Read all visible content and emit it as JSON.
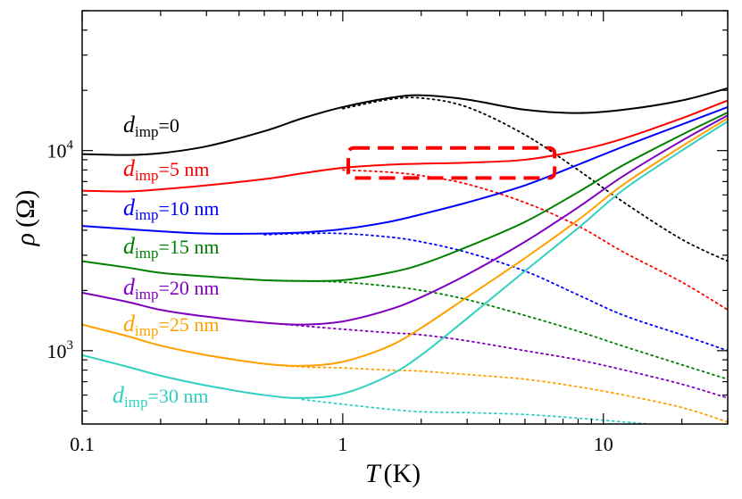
{
  "chart_data": {
    "type": "line",
    "title": "",
    "xlabel": "T (K)",
    "ylabel": "ρ (Ω)",
    "xscale": "log",
    "yscale": "log",
    "xlim": [
      0.1,
      30
    ],
    "ylim": [
      430,
      50000
    ],
    "x_ticks": [
      "0.1",
      "1",
      "10"
    ],
    "y_ticks": [
      "10^4",
      "10^3"
    ],
    "x_title": {
      "var": "T",
      "unit": "(K)"
    },
    "y_title": {
      "var": "ρ",
      "unit": "(Ω)"
    },
    "annotations": [
      {
        "type": "dashed-box",
        "color": "#ff0000",
        "x_range": [
          1.05,
          6.5
        ],
        "y_range": [
          7300,
          10300
        ]
      }
    ],
    "series": [
      {
        "name": "d_imp=0",
        "label_main": "d",
        "label_sub": "imp",
        "label_rest": "=0",
        "color": "#000000",
        "solid": [
          [
            0.1,
            9600
          ],
          [
            0.15,
            9500
          ],
          [
            0.2,
            9700
          ],
          [
            0.3,
            10500
          ],
          [
            0.5,
            12500
          ],
          [
            0.7,
            14500
          ],
          [
            1,
            16500
          ],
          [
            1.5,
            18300
          ],
          [
            2,
            18900
          ],
          [
            3,
            18000
          ],
          [
            5,
            16000
          ],
          [
            8,
            15400
          ],
          [
            12,
            16000
          ],
          [
            20,
            17800
          ],
          [
            30,
            20500
          ]
        ],
        "dotted": [
          [
            1,
            16200
          ],
          [
            1.5,
            18000
          ],
          [
            2,
            18300
          ],
          [
            3,
            16500
          ],
          [
            5,
            12000
          ],
          [
            8,
            8000
          ],
          [
            12,
            5500
          ],
          [
            20,
            3600
          ],
          [
            30,
            2800
          ]
        ]
      },
      {
        "name": "d_imp=5 nm",
        "label_main": "d",
        "label_sub": "imp",
        "label_rest": "=5 nm",
        "color": "#ff0000",
        "solid": [
          [
            0.1,
            6300
          ],
          [
            0.15,
            6250
          ],
          [
            0.2,
            6400
          ],
          [
            0.3,
            6700
          ],
          [
            0.5,
            7200
          ],
          [
            0.7,
            7700
          ],
          [
            1,
            8200
          ],
          [
            1.5,
            8500
          ],
          [
            2,
            8600
          ],
          [
            3,
            8700
          ],
          [
            5,
            9000
          ],
          [
            8,
            10000
          ],
          [
            12,
            11500
          ],
          [
            20,
            14500
          ],
          [
            30,
            17800
          ]
        ],
        "dotted": [
          [
            1,
            8000
          ],
          [
            1.5,
            7800
          ],
          [
            2,
            7500
          ],
          [
            3,
            6800
          ],
          [
            5,
            5500
          ],
          [
            8,
            4200
          ],
          [
            12,
            3100
          ],
          [
            20,
            2200
          ],
          [
            30,
            1600
          ]
        ]
      },
      {
        "name": "d_imp=10 nm",
        "label_main": "d",
        "label_sub": "imp",
        "label_rest": "=10 nm",
        "color": "#0000ff",
        "solid": [
          [
            0.1,
            4200
          ],
          [
            0.15,
            4050
          ],
          [
            0.2,
            3950
          ],
          [
            0.3,
            3850
          ],
          [
            0.5,
            3850
          ],
          [
            0.7,
            3900
          ],
          [
            1,
            4050
          ],
          [
            1.5,
            4400
          ],
          [
            2,
            4800
          ],
          [
            3,
            5500
          ],
          [
            5,
            6700
          ],
          [
            8,
            8500
          ],
          [
            12,
            10500
          ],
          [
            20,
            13500
          ],
          [
            30,
            16500
          ]
        ],
        "dotted": [
          [
            0.5,
            3800
          ],
          [
            0.7,
            3850
          ],
          [
            1,
            3850
          ],
          [
            1.5,
            3700
          ],
          [
            2,
            3500
          ],
          [
            3,
            3100
          ],
          [
            5,
            2500
          ],
          [
            8,
            1900
          ],
          [
            12,
            1500
          ],
          [
            20,
            1200
          ],
          [
            30,
            1000
          ]
        ]
      },
      {
        "name": "d_imp=15 nm",
        "label_main": "d",
        "label_sub": "imp",
        "label_rest": "=15 nm",
        "color": "#008000",
        "solid": [
          [
            0.1,
            2800
          ],
          [
            0.15,
            2600
          ],
          [
            0.2,
            2450
          ],
          [
            0.3,
            2350
          ],
          [
            0.5,
            2250
          ],
          [
            0.7,
            2230
          ],
          [
            1,
            2250
          ],
          [
            1.5,
            2450
          ],
          [
            2,
            2700
          ],
          [
            3,
            3300
          ],
          [
            5,
            4400
          ],
          [
            8,
            6200
          ],
          [
            12,
            8500
          ],
          [
            20,
            12000
          ],
          [
            30,
            15500
          ]
        ],
        "dotted": [
          [
            0.5,
            2250
          ],
          [
            0.7,
            2230
          ],
          [
            1,
            2200
          ],
          [
            1.5,
            2100
          ],
          [
            2,
            2000
          ],
          [
            3,
            1800
          ],
          [
            5,
            1500
          ],
          [
            8,
            1250
          ],
          [
            12,
            1050
          ],
          [
            20,
            850
          ],
          [
            30,
            720
          ]
        ]
      },
      {
        "name": "d_imp=20 nm",
        "label_main": "d",
        "label_sub": "imp",
        "label_rest": "=20 nm",
        "color": "#8000c0",
        "solid": [
          [
            0.1,
            1950
          ],
          [
            0.15,
            1750
          ],
          [
            0.2,
            1600
          ],
          [
            0.3,
            1480
          ],
          [
            0.5,
            1380
          ],
          [
            0.7,
            1350
          ],
          [
            1,
            1400
          ],
          [
            1.5,
            1600
          ],
          [
            2,
            1850
          ],
          [
            3,
            2400
          ],
          [
            5,
            3500
          ],
          [
            8,
            5200
          ],
          [
            12,
            7500
          ],
          [
            20,
            11200
          ],
          [
            30,
            15000
          ]
        ],
        "dotted": [
          [
            0.5,
            1380
          ],
          [
            0.7,
            1330
          ],
          [
            1,
            1280
          ],
          [
            1.5,
            1230
          ],
          [
            2,
            1200
          ],
          [
            3,
            1120
          ],
          [
            5,
            1000
          ],
          [
            8,
            900
          ],
          [
            12,
            800
          ],
          [
            20,
            680
          ],
          [
            30,
            580
          ]
        ]
      },
      {
        "name": "d_imp=25 nm",
        "label_main": "d",
        "label_sub": "imp",
        "label_rest": "=25 nm",
        "color": "#ffa000",
        "solid": [
          [
            0.1,
            1350
          ],
          [
            0.15,
            1180
          ],
          [
            0.2,
            1060
          ],
          [
            0.3,
            950
          ],
          [
            0.5,
            860
          ],
          [
            0.7,
            840
          ],
          [
            1,
            880
          ],
          [
            1.5,
            1050
          ],
          [
            2,
            1300
          ],
          [
            3,
            1850
          ],
          [
            5,
            2900
          ],
          [
            8,
            4500
          ],
          [
            12,
            6800
          ],
          [
            20,
            10500
          ],
          [
            30,
            14500
          ]
        ],
        "dotted": [
          [
            0.3,
            950
          ],
          [
            0.5,
            860
          ],
          [
            0.7,
            830
          ],
          [
            1,
            820
          ],
          [
            1.5,
            800
          ],
          [
            2,
            790
          ],
          [
            3,
            760
          ],
          [
            5,
            720
          ],
          [
            8,
            660
          ],
          [
            12,
            600
          ],
          [
            20,
            520
          ],
          [
            30,
            440
          ]
        ]
      },
      {
        "name": "d_imp=30 nm",
        "label_main": "d",
        "label_sub": "imp",
        "label_rest": "=30 nm",
        "color": "#30d0c0",
        "solid": [
          [
            0.1,
            950
          ],
          [
            0.15,
            830
          ],
          [
            0.2,
            750
          ],
          [
            0.3,
            670
          ],
          [
            0.5,
            600
          ],
          [
            0.7,
            580
          ],
          [
            1,
            610
          ],
          [
            1.5,
            750
          ],
          [
            2,
            950
          ],
          [
            3,
            1450
          ],
          [
            5,
            2500
          ],
          [
            8,
            4100
          ],
          [
            12,
            6400
          ],
          [
            20,
            10000
          ],
          [
            30,
            14000
          ]
        ],
        "dotted": [
          [
            0.7,
            570
          ],
          [
            1,
            540
          ],
          [
            1.5,
            510
          ],
          [
            2,
            495
          ],
          [
            3,
            490
          ],
          [
            5,
            480
          ],
          [
            8,
            460
          ],
          [
            12,
            440
          ],
          [
            15,
            430
          ]
        ]
      }
    ]
  }
}
